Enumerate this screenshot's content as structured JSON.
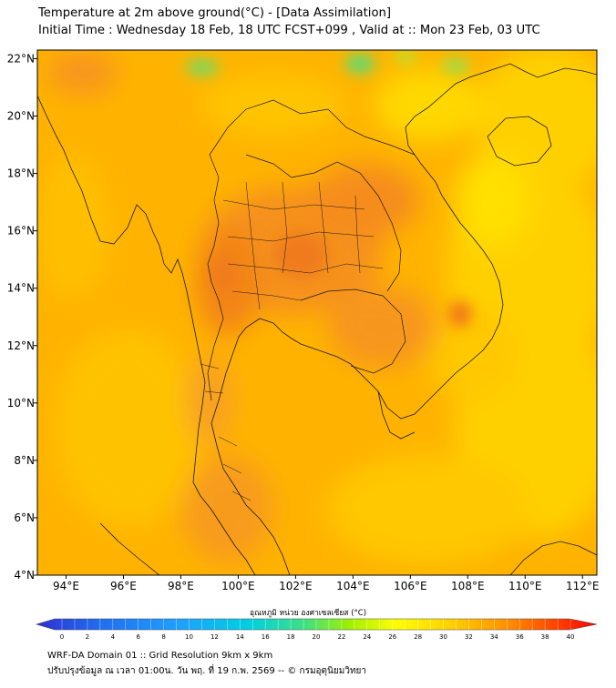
{
  "title": {
    "line1": "Temperature at 2m above ground(°C) - [Data Assimilation]",
    "line2": "Initial Time : Wednesday 18 Feb, 18 UTC FCST+099 , Valid at :: Mon 23 Feb, 03 UTC"
  },
  "axes": {
    "lon_ticks": [
      "94°E",
      "96°E",
      "98°E",
      "100°E",
      "102°E",
      "104°E",
      "106°E",
      "108°E",
      "110°E",
      "112°E"
    ],
    "lon_values": [
      94,
      96,
      98,
      100,
      102,
      104,
      106,
      108,
      110,
      112
    ],
    "lat_ticks": [
      "22°N",
      "20°N",
      "18°N",
      "16°N",
      "14°N",
      "12°N",
      "10°N",
      "8°N",
      "6°N",
      "4°N"
    ],
    "lat_values": [
      22,
      20,
      18,
      16,
      14,
      12,
      10,
      8,
      6,
      4
    ],
    "lon_range": [
      93.0,
      112.5
    ],
    "lat_range": [
      4.0,
      22.3
    ]
  },
  "colorbar": {
    "title": "อุณหภูมิ หน่วย องศาเซลเซียส (°C)",
    "tick_labels": [
      "0",
      "2",
      "4",
      "6",
      "8",
      "10",
      "12",
      "14",
      "16",
      "18",
      "20",
      "22",
      "24",
      "26",
      "28",
      "30",
      "32",
      "34",
      "36",
      "38",
      "40"
    ],
    "tick_values": [
      0,
      2,
      4,
      6,
      8,
      10,
      12,
      14,
      16,
      18,
      20,
      22,
      24,
      26,
      28,
      30,
      32,
      34,
      36,
      38,
      40
    ],
    "range": [
      0,
      40
    ],
    "colors": [
      "#3030d0",
      "#1e90ff",
      "#00d0e0",
      "#40e080",
      "#a0f000",
      "#ffff00",
      "#ffc000",
      "#ff8000",
      "#ff2000",
      "#ff0000"
    ]
  },
  "footer": {
    "line1": "WRF-DA Domain 01 :: Grid Resolution 9km x 9km",
    "line2": "ปรับปรุงข้อมูล ณ เวลา 01:00น. วัน พฤ. ที่ 19 ก.พ. 2569 -- © กรมอุตุนิยมวิทยา"
  },
  "field_colors": {
    "background": "#ffb300",
    "hot": "#f58a1c",
    "hottest": "#f07018",
    "cool": "#ffd000",
    "coolest": "#ffe000",
    "cold_spot": "#4ee07e"
  }
}
